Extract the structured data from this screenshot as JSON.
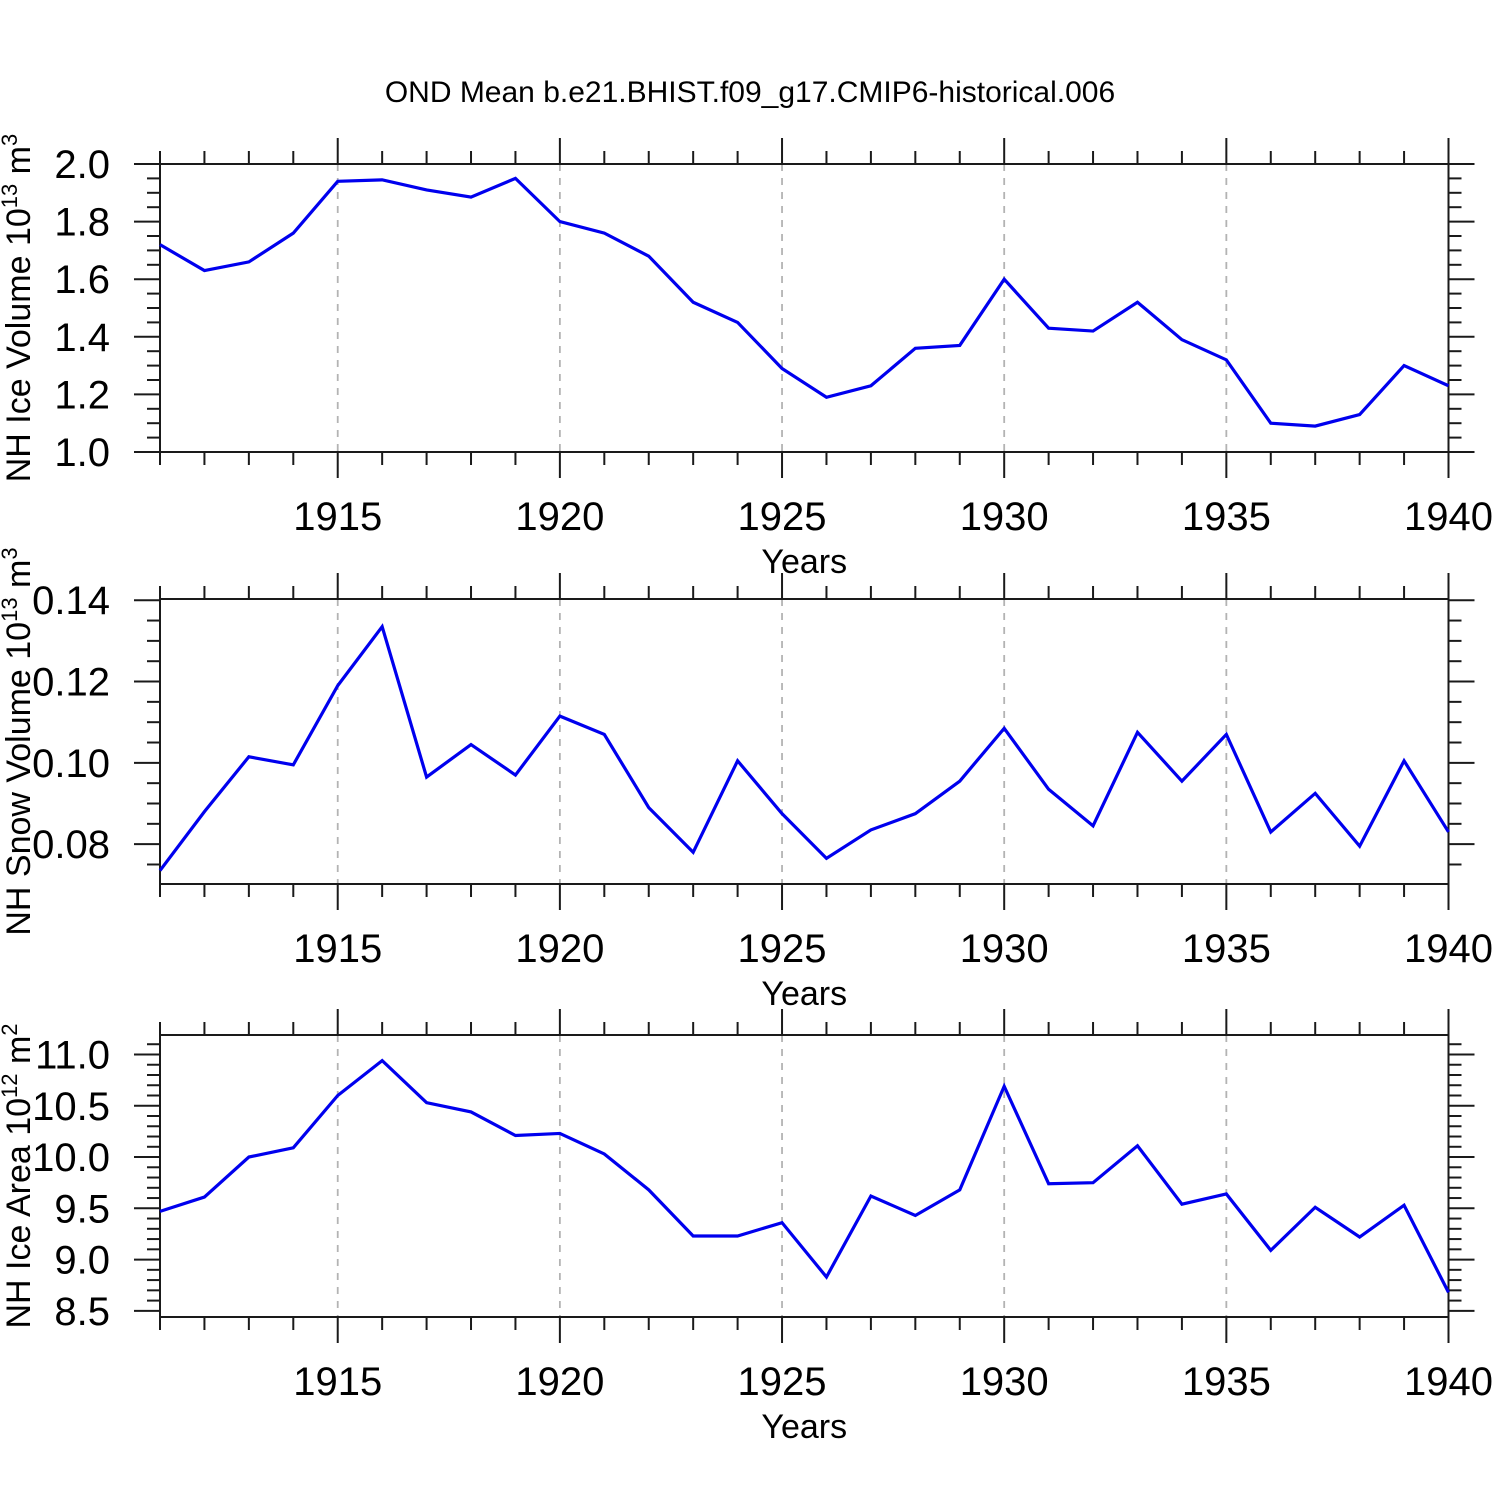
{
  "title": "OND Mean b.e21.BHIST.f09_g17.CMIP6-historical.006",
  "styles": {
    "line_color": "#0000ee",
    "grid_color": "#b3b3b3",
    "axis_color": "#1a1a1a",
    "text_color": "#000000",
    "background": "#ffffff"
  },
  "chart_data": [
    {
      "type": "line",
      "name": "nh-ice-volume",
      "ylabel": "NH Ice Volume 10^13 m^3",
      "ylabel_parts": [
        {
          "t": "NH Ice Volume 10",
          "sup": false
        },
        {
          "t": "13",
          "sup": true
        },
        {
          "t": " m",
          "sup": false
        },
        {
          "t": "3",
          "sup": true
        }
      ],
      "xlabel": "Years",
      "x": [
        1911,
        1912,
        1913,
        1914,
        1915,
        1916,
        1917,
        1918,
        1919,
        1920,
        1921,
        1922,
        1923,
        1924,
        1925,
        1926,
        1927,
        1928,
        1929,
        1930,
        1931,
        1932,
        1933,
        1934,
        1935,
        1936,
        1937,
        1938,
        1939,
        1940
      ],
      "values": [
        1.72,
        1.63,
        1.66,
        1.76,
        1.94,
        1.945,
        1.91,
        1.885,
        1.95,
        1.8,
        1.76,
        1.68,
        1.52,
        1.45,
        1.29,
        1.19,
        1.23,
        1.36,
        1.37,
        1.6,
        1.43,
        1.42,
        1.52,
        1.39,
        1.32,
        1.1,
        1.09,
        1.13,
        1.3,
        1.23
      ],
      "xlim": [
        1911,
        1940
      ],
      "ylim": [
        1.0,
        2.0
      ],
      "yminor_step": 0.05,
      "yticks": [
        {
          "value": 1.0,
          "label": "1.0"
        },
        {
          "value": 1.2,
          "label": "1.2"
        },
        {
          "value": 1.4,
          "label": "1.4"
        },
        {
          "value": 1.6,
          "label": "1.6"
        },
        {
          "value": 1.8,
          "label": "1.8"
        },
        {
          "value": 2.0,
          "label": "2.0"
        }
      ],
      "xticks": [
        1915,
        1920,
        1925,
        1930,
        1935,
        1940
      ],
      "xtick_labels": [
        "1915",
        "1920",
        "1925",
        "1930",
        "1935",
        "1940"
      ],
      "xminor_step": 1,
      "grid_years": [
        1915,
        1920,
        1925,
        1930,
        1935
      ],
      "grid_on": true
    },
    {
      "type": "line",
      "name": "nh-snow-volume",
      "ylabel": "NH Snow Volume 10^13 m^3",
      "ylabel_parts": [
        {
          "t": "NH Snow Volume 10",
          "sup": false
        },
        {
          "t": "13",
          "sup": true
        },
        {
          "t": " m",
          "sup": false
        },
        {
          "t": "3",
          "sup": true
        }
      ],
      "xlabel": "Years",
      "x": [
        1911,
        1912,
        1913,
        1914,
        1915,
        1916,
        1917,
        1918,
        1919,
        1920,
        1921,
        1922,
        1923,
        1924,
        1925,
        1926,
        1927,
        1928,
        1929,
        1930,
        1931,
        1932,
        1933,
        1934,
        1935,
        1936,
        1937,
        1938,
        1939,
        1940
      ],
      "values": [
        0.0735,
        0.088,
        0.1015,
        0.0995,
        0.119,
        0.1335,
        0.0965,
        0.1045,
        0.097,
        0.1115,
        0.107,
        0.089,
        0.078,
        0.1005,
        0.0875,
        0.0765,
        0.0835,
        0.0875,
        0.0955,
        0.1085,
        0.0935,
        0.0845,
        0.1075,
        0.0955,
        0.107,
        0.083,
        0.0925,
        0.0795,
        0.1005,
        0.083
      ],
      "xlim": [
        1911,
        1940
      ],
      "ylim": [
        0.0702,
        0.1403
      ],
      "yminor_step": 0.005,
      "yticks": [
        {
          "value": 0.08,
          "label": "0.08"
        },
        {
          "value": 0.1,
          "label": "0.10"
        },
        {
          "value": 0.12,
          "label": "0.12"
        },
        {
          "value": 0.14,
          "label": "0.14"
        }
      ],
      "xticks": [
        1915,
        1920,
        1925,
        1930,
        1935,
        1940
      ],
      "xtick_labels": [
        "1915",
        "1920",
        "1925",
        "1930",
        "1935",
        "1940"
      ],
      "xminor_step": 1,
      "grid_years": [
        1915,
        1920,
        1925,
        1930,
        1935
      ],
      "grid_on": true
    },
    {
      "type": "line",
      "name": "nh-ice-area",
      "ylabel": "NH Ice Area 10^12 m^2",
      "ylabel_parts": [
        {
          "t": "NH Ice Area 10",
          "sup": false
        },
        {
          "t": "12",
          "sup": true
        },
        {
          "t": " m",
          "sup": false
        },
        {
          "t": "2",
          "sup": true
        }
      ],
      "xlabel": "Years",
      "x": [
        1911,
        1912,
        1913,
        1914,
        1915,
        1916,
        1917,
        1918,
        1919,
        1920,
        1921,
        1922,
        1923,
        1924,
        1925,
        1926,
        1927,
        1928,
        1929,
        1930,
        1931,
        1932,
        1933,
        1934,
        1935,
        1936,
        1937,
        1938,
        1939,
        1940
      ],
      "values": [
        9.47,
        9.61,
        10.0,
        10.09,
        10.6,
        10.94,
        10.53,
        10.44,
        10.21,
        10.23,
        10.03,
        9.68,
        9.23,
        9.23,
        9.36,
        8.83,
        9.62,
        9.43,
        9.68,
        10.69,
        9.74,
        9.75,
        10.11,
        9.54,
        9.64,
        9.09,
        9.51,
        9.22,
        9.53,
        8.68
      ],
      "xlim": [
        1911,
        1940
      ],
      "ylim": [
        8.44,
        11.19
      ],
      "yminor_step": 0.1,
      "yticks": [
        {
          "value": 8.5,
          "label": "8.5"
        },
        {
          "value": 9.0,
          "label": "9.0"
        },
        {
          "value": 9.5,
          "label": "9.5"
        },
        {
          "value": 10.0,
          "label": "10.0"
        },
        {
          "value": 10.5,
          "label": "10.5"
        },
        {
          "value": 11.0,
          "label": "11.0"
        }
      ],
      "xticks": [
        1915,
        1920,
        1925,
        1930,
        1935,
        1940
      ],
      "xtick_labels": [
        "1915",
        "1920",
        "1925",
        "1930",
        "1935",
        "1940"
      ],
      "xminor_step": 1,
      "grid_years": [
        1915,
        1920,
        1925,
        1930,
        1935
      ],
      "grid_on": true
    }
  ]
}
